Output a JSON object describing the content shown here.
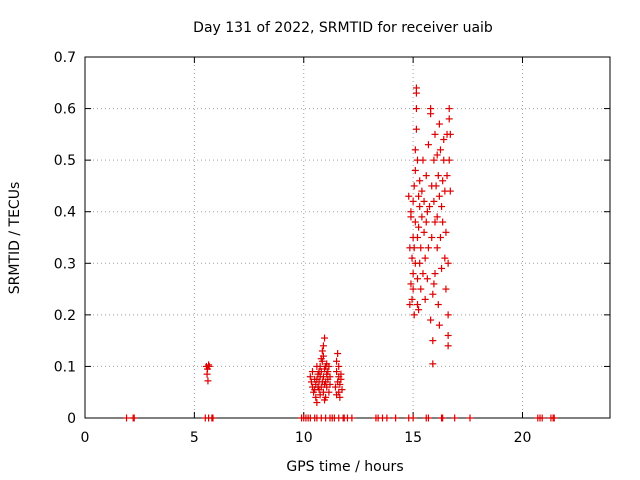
{
  "chart_data": {
    "type": "scatter",
    "title": "Day 131 of 2022, SRMTID for receiver uaib",
    "xlabel": "GPS time / hours",
    "ylabel": "SRMTID / TECUs",
    "xlim": [
      0,
      24
    ],
    "ylim": [
      0,
      0.7
    ],
    "xticks": [
      0,
      5,
      10,
      15,
      20
    ],
    "yticks": [
      0,
      0.1,
      0.2,
      0.3,
      0.4,
      0.5,
      0.6,
      0.7
    ],
    "xtick_labels": [
      "0",
      "5",
      "10",
      "15",
      "20"
    ],
    "ytick_labels": [
      "0",
      "0.1",
      "0.2",
      "0.3",
      "0.4",
      "0.5",
      "0.6",
      "0.7"
    ],
    "grid": true,
    "marker": "+",
    "marker_color": "#dd0000",
    "series": [
      {
        "name": "SRMTID",
        "points": [
          [
            1.9,
            0
          ],
          [
            2.2,
            0
          ],
          [
            2.25,
            0
          ],
          [
            5.5,
            0
          ],
          [
            5.65,
            0
          ],
          [
            5.8,
            0
          ],
          [
            5.85,
            0
          ],
          [
            5.55,
            0.1
          ],
          [
            5.6,
            0.095
          ],
          [
            5.65,
            0.103
          ],
          [
            5.58,
            0.085
          ],
          [
            5.62,
            0.072
          ],
          [
            5.68,
            0.1
          ],
          [
            9.9,
            0
          ],
          [
            10.0,
            0
          ],
          [
            10.1,
            0
          ],
          [
            10.2,
            0
          ],
          [
            10.3,
            0
          ],
          [
            10.5,
            0
          ],
          [
            10.6,
            0
          ],
          [
            10.8,
            0
          ],
          [
            11.0,
            0
          ],
          [
            11.2,
            0
          ],
          [
            11.3,
            0
          ],
          [
            11.4,
            0
          ],
          [
            11.6,
            0
          ],
          [
            11.8,
            0
          ],
          [
            11.85,
            0
          ],
          [
            12.0,
            0
          ],
          [
            12.2,
            0
          ],
          [
            13.3,
            0
          ],
          [
            13.4,
            0
          ],
          [
            13.6,
            0
          ],
          [
            13.8,
            0
          ],
          [
            14.2,
            0
          ],
          [
            14.8,
            0
          ],
          [
            15.0,
            0
          ],
          [
            15.6,
            0
          ],
          [
            15.7,
            0
          ],
          [
            16.3,
            0
          ],
          [
            16.35,
            0
          ],
          [
            16.9,
            0
          ],
          [
            17.6,
            0
          ],
          [
            20.7,
            0
          ],
          [
            20.8,
            0
          ],
          [
            20.9,
            0
          ],
          [
            21.3,
            0
          ],
          [
            21.4,
            0
          ],
          [
            21.45,
            0
          ],
          [
            10.3,
            0.08
          ],
          [
            10.35,
            0.07
          ],
          [
            10.4,
            0.06
          ],
          [
            10.4,
            0.09
          ],
          [
            10.45,
            0.05
          ],
          [
            10.5,
            0.075
          ],
          [
            10.55,
            0.04
          ],
          [
            10.55,
            0.065
          ],
          [
            10.6,
            0.03
          ],
          [
            10.6,
            0.1
          ],
          [
            10.65,
            0.06
          ],
          [
            10.65,
            0.085
          ],
          [
            10.7,
            0.055
          ],
          [
            10.7,
            0.07
          ],
          [
            10.75,
            0.08
          ],
          [
            10.75,
            0.045
          ],
          [
            10.8,
            0.09
          ],
          [
            10.8,
            0.06
          ],
          [
            10.85,
            0.11
          ],
          [
            10.85,
            0.07
          ],
          [
            10.85,
            0.13
          ],
          [
            10.9,
            0.05
          ],
          [
            10.9,
            0.08
          ],
          [
            10.9,
            0.12
          ],
          [
            10.9,
            0.14
          ],
          [
            10.95,
            0.155
          ],
          [
            10.95,
            0.065
          ],
          [
            10.95,
            0.095
          ],
          [
            11.0,
            0.07
          ],
          [
            11.0,
            0.1
          ],
          [
            11.0,
            0.04
          ],
          [
            11.05,
            0.085
          ],
          [
            11.05,
            0.06
          ],
          [
            11.1,
            0.09
          ],
          [
            11.1,
            0.075
          ],
          [
            11.15,
            0.05
          ],
          [
            11.15,
            0.1
          ],
          [
            11.2,
            0.065
          ],
          [
            11.2,
            0.08
          ],
          [
            10.7,
            0.09
          ],
          [
            10.6,
            0.075
          ],
          [
            10.5,
            0.055
          ],
          [
            10.75,
            0.1
          ],
          [
            10.8,
            0.115
          ],
          [
            10.95,
            0.035
          ],
          [
            11.05,
            0.105
          ],
          [
            11.45,
            0.06
          ],
          [
            11.5,
            0.09
          ],
          [
            11.5,
            0.11
          ],
          [
            11.55,
            0.07
          ],
          [
            11.55,
            0.125
          ],
          [
            11.6,
            0.05
          ],
          [
            11.6,
            0.08
          ],
          [
            11.6,
            0.1
          ],
          [
            11.65,
            0.065
          ],
          [
            11.65,
            0.04
          ],
          [
            11.7,
            0.085
          ],
          [
            11.7,
            0.075
          ],
          [
            11.75,
            0.055
          ],
          [
            11.5,
            0.045
          ],
          [
            14.8,
            0.43
          ],
          [
            14.85,
            0.22
          ],
          [
            14.85,
            0.33
          ],
          [
            14.9,
            0.4
          ],
          [
            14.9,
            0.26
          ],
          [
            14.9,
            0.39
          ],
          [
            14.95,
            0.31
          ],
          [
            14.95,
            0.23
          ],
          [
            15.0,
            0.35
          ],
          [
            15.0,
            0.25
          ],
          [
            15.0,
            0.28
          ],
          [
            15.0,
            0.42
          ],
          [
            15.05,
            0.2
          ],
          [
            15.05,
            0.45
          ],
          [
            15.05,
            0.33
          ],
          [
            15.1,
            0.3
          ],
          [
            15.1,
            0.38
          ],
          [
            15.1,
            0.48
          ],
          [
            15.1,
            0.52
          ],
          [
            15.15,
            0.6
          ],
          [
            15.15,
            0.64
          ],
          [
            15.15,
            0.63
          ],
          [
            15.15,
            0.56
          ],
          [
            15.2,
            0.27
          ],
          [
            15.2,
            0.22
          ],
          [
            15.2,
            0.35
          ],
          [
            15.2,
            0.5
          ],
          [
            15.25,
            0.43
          ],
          [
            15.25,
            0.37
          ],
          [
            15.3,
            0.3
          ],
          [
            15.3,
            0.41
          ],
          [
            15.3,
            0.46
          ],
          [
            15.35,
            0.25
          ],
          [
            15.35,
            0.33
          ],
          [
            15.4,
            0.39
          ],
          [
            15.4,
            0.44
          ],
          [
            15.45,
            0.28
          ],
          [
            15.45,
            0.5
          ],
          [
            15.5,
            0.36
          ],
          [
            15.5,
            0.42
          ],
          [
            15.55,
            0.23
          ],
          [
            15.55,
            0.31
          ],
          [
            15.6,
            0.47
          ],
          [
            15.6,
            0.38
          ],
          [
            15.65,
            0.27
          ],
          [
            15.7,
            0.53
          ],
          [
            15.7,
            0.33
          ],
          [
            15.75,
            0.41
          ],
          [
            15.8,
            0.19
          ],
          [
            15.8,
            0.6
          ],
          [
            15.8,
            0.59
          ],
          [
            15.85,
            0.45
          ],
          [
            15.85,
            0.35
          ],
          [
            15.9,
            0.24
          ],
          [
            15.9,
            0.15
          ],
          [
            15.9,
            0.105
          ],
          [
            15.95,
            0.5
          ],
          [
            15.95,
            0.42
          ],
          [
            16.0,
            0.38
          ],
          [
            16.0,
            0.28
          ],
          [
            16.0,
            0.55
          ],
          [
            16.05,
            0.45
          ],
          [
            16.1,
            0.51
          ],
          [
            16.1,
            0.39
          ],
          [
            16.1,
            0.33
          ],
          [
            16.15,
            0.22
          ],
          [
            16.15,
            0.47
          ],
          [
            16.2,
            0.57
          ],
          [
            16.2,
            0.43
          ],
          [
            16.25,
            0.35
          ],
          [
            16.25,
            0.52
          ],
          [
            16.3,
            0.41
          ],
          [
            16.3,
            0.29
          ],
          [
            16.35,
            0.46
          ],
          [
            16.35,
            0.38
          ],
          [
            16.4,
            0.5
          ],
          [
            16.4,
            0.54
          ],
          [
            16.45,
            0.44
          ],
          [
            16.5,
            0.36
          ],
          [
            16.5,
            0.25
          ],
          [
            16.55,
            0.55
          ],
          [
            16.55,
            0.47
          ],
          [
            16.6,
            0.3
          ],
          [
            16.6,
            0.2
          ],
          [
            16.6,
            0.14
          ],
          [
            16.6,
            0.16
          ],
          [
            16.65,
            0.6
          ],
          [
            16.65,
            0.58
          ],
          [
            16.65,
            0.5
          ],
          [
            16.7,
            0.44
          ],
          [
            16.7,
            0.55
          ],
          [
            15.25,
            0.21
          ],
          [
            15.65,
            0.4
          ],
          [
            15.95,
            0.26
          ],
          [
            16.45,
            0.31
          ],
          [
            16.2,
            0.18
          ]
        ]
      }
    ]
  }
}
